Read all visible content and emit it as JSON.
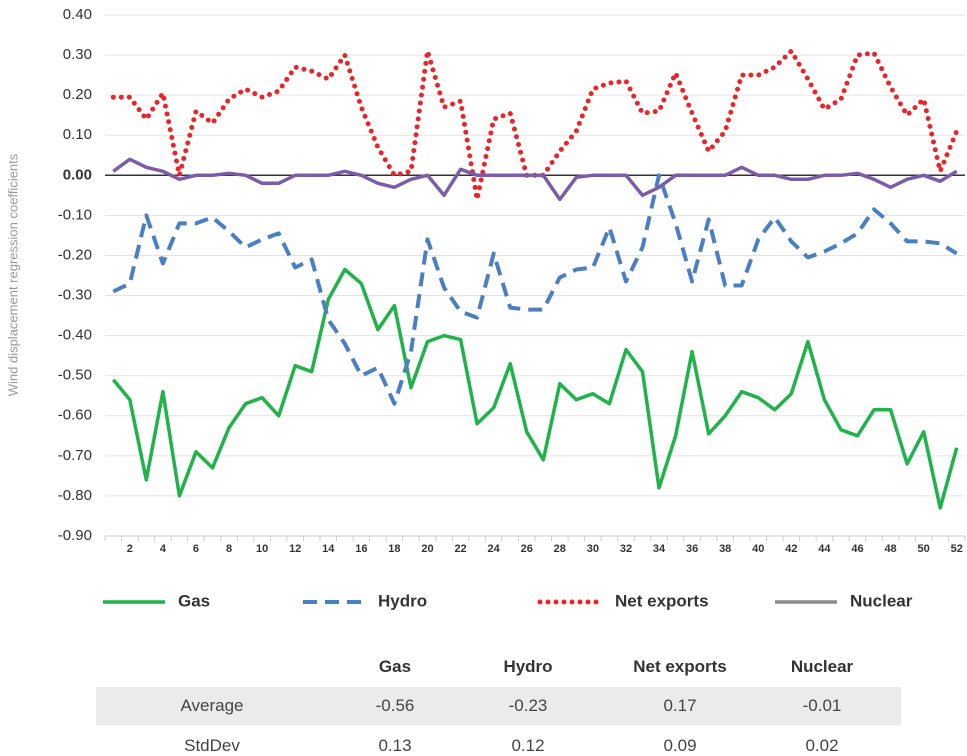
{
  "chart_data": {
    "type": "line",
    "ylabel": "Wind displacement regression coefficients",
    "categories": [
      null,
      2,
      null,
      4,
      null,
      6,
      null,
      8,
      null,
      10,
      null,
      12,
      null,
      14,
      null,
      16,
      null,
      18,
      null,
      20,
      null,
      22,
      null,
      24,
      null,
      26,
      null,
      28,
      null,
      30,
      null,
      32,
      null,
      34,
      null,
      36,
      null,
      38,
      null,
      40,
      null,
      42,
      null,
      44,
      null,
      46,
      null,
      48,
      null,
      50,
      null,
      52
    ],
    "ylim": [
      -0.9,
      0.4
    ],
    "yticks": [
      {
        "value": 0.4,
        "label": "0.40"
      },
      {
        "value": 0.3,
        "label": "0.30"
      },
      {
        "value": 0.2,
        "label": "0.20"
      },
      {
        "value": 0.1,
        "label": "0.10"
      },
      {
        "value": 0,
        "label": "0.00"
      },
      {
        "value": -0.1,
        "label": "-0.10"
      },
      {
        "value": -0.2,
        "label": "-0.20"
      },
      {
        "value": -0.3,
        "label": "-0.30"
      },
      {
        "value": -0.4,
        "label": "-0.40"
      },
      {
        "value": -0.5,
        "label": "-0.50"
      },
      {
        "value": -0.6,
        "label": "-0.60"
      },
      {
        "value": -0.7,
        "label": "-0.70"
      },
      {
        "value": -0.8,
        "label": "-0.80"
      },
      {
        "value": -0.9,
        "label": "-0.90"
      }
    ],
    "grid": true,
    "legend": "bottom",
    "series": [
      {
        "name": "Gas",
        "color": "#1fb34a",
        "style": "solid",
        "values": [
          -0.51,
          -0.56,
          -0.76,
          -0.54,
          -0.8,
          -0.69,
          -0.73,
          -0.63,
          -0.57,
          -0.555,
          -0.6,
          -0.475,
          -0.49,
          -0.31,
          -0.235,
          -0.27,
          -0.385,
          -0.325,
          -0.53,
          -0.415,
          -0.4,
          -0.41,
          -0.62,
          -0.58,
          -0.47,
          -0.64,
          -0.71,
          -0.52,
          -0.56,
          -0.545,
          -0.57,
          -0.435,
          -0.49,
          -0.78,
          -0.65,
          -0.44,
          -0.645,
          -0.6,
          -0.54,
          -0.555,
          -0.585,
          -0.545,
          -0.415,
          -0.56,
          -0.635,
          -0.65,
          -0.585,
          -0.585,
          -0.72,
          -0.64,
          -0.83,
          -0.68
        ]
      },
      {
        "name": "Hydro",
        "color": "#4a7fc1",
        "style": "dashed",
        "values": [
          -0.29,
          -0.27,
          -0.1,
          -0.22,
          -0.12,
          -0.12,
          -0.105,
          -0.14,
          -0.18,
          -0.16,
          -0.145,
          -0.23,
          -0.21,
          -0.36,
          -0.42,
          -0.5,
          -0.48,
          -0.57,
          -0.44,
          -0.16,
          -0.28,
          -0.34,
          -0.355,
          -0.195,
          -0.33,
          -0.335,
          -0.335,
          -0.255,
          -0.235,
          -0.23,
          -0.13,
          -0.265,
          -0.18,
          0,
          -0.12,
          -0.265,
          -0.11,
          -0.275,
          -0.275,
          -0.16,
          -0.105,
          -0.165,
          -0.205,
          -0.19,
          -0.17,
          -0.145,
          -0.085,
          -0.12,
          -0.165,
          -0.165,
          -0.17,
          -0.195
        ]
      },
      {
        "name": "Net exports",
        "color": "#e8262a",
        "style": "dotted",
        "values": [
          0.195,
          0.195,
          0.14,
          0.205,
          0,
          0.16,
          0.13,
          0.19,
          0.215,
          0.195,
          0.21,
          0.27,
          0.26,
          0.24,
          0.3,
          0.17,
          0.07,
          0,
          0.01,
          0.31,
          0.17,
          0.185,
          -0.06,
          0.14,
          0.155,
          0,
          0,
          0.06,
          0.11,
          0.215,
          0.23,
          0.235,
          0.155,
          0.16,
          0.255,
          0.155,
          0.06,
          0.11,
          0.25,
          0.25,
          0.27,
          0.31,
          0.24,
          0.165,
          0.19,
          0.3,
          0.305,
          0.22,
          0.15,
          0.19,
          0.01,
          0.11
        ]
      },
      {
        "name": "Nuclear",
        "color": "#7a5ca8",
        "legend_color": "#8c8c8c",
        "style": "solid",
        "values": [
          0.01,
          0.04,
          0.02,
          0.01,
          -0.01,
          0,
          0,
          0.005,
          0,
          -0.02,
          -0.02,
          0,
          0,
          0,
          0.01,
          0,
          -0.02,
          -0.03,
          -0.01,
          0,
          -0.05,
          0.015,
          0,
          0,
          0,
          0,
          0,
          -0.06,
          -0.005,
          0,
          0,
          0,
          -0.05,
          -0.03,
          0,
          0,
          0,
          0,
          0.02,
          0,
          0,
          -0.01,
          -0.01,
          0,
          0,
          0.005,
          -0.01,
          -0.03,
          -0.01,
          0,
          -0.015,
          0.01
        ]
      }
    ]
  },
  "table": {
    "columns": [
      "Gas",
      "Hydro",
      "Net exports",
      "Nuclear"
    ],
    "rows": [
      {
        "label": "Average",
        "values": [
          -0.56,
          -0.23,
          0.17,
          -0.01
        ]
      },
      {
        "label": "StdDev",
        "values": [
          0.13,
          0.12,
          0.09,
          0.02
        ]
      }
    ]
  }
}
